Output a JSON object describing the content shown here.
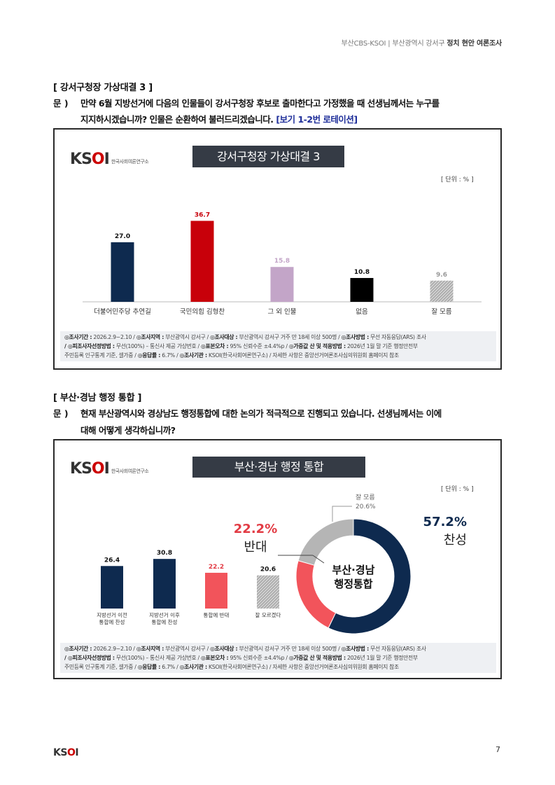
{
  "header": {
    "source": "부산CBS-KSOI",
    "region": "부산광역시 강서구",
    "title": "정치 현안 여론조사"
  },
  "section1": {
    "heading": "[ 강서구청장 가상대결 3 ]",
    "q_prefix": "문 )",
    "q_line1": "만약 6월 지방선거에 다음의 인물들이 강서구청장 후보로 출마한다고 가정했을 때 선생님께서는 누구를",
    "q_line2": "지지하시겠습니까? 인물은 순환하여 불러드리겠습니다.",
    "q_note": "[보기 1-2번 로테이션]"
  },
  "chart1": {
    "logo": "KSOI",
    "logo_sub": "한국사회여론연구소",
    "title": "강서구청장 가상대결 3",
    "unit": "[ 단위 : % ]",
    "chart_data": {
      "type": "bar",
      "categories": [
        "더불어민주당 추연길",
        "국민의힘 김형찬",
        "그 외 인물",
        "없음",
        "잘 모름"
      ],
      "values": [
        27.0,
        36.7,
        15.8,
        10.8,
        9.6
      ],
      "value_labels": [
        "27.0",
        "36.7",
        "15.8",
        "10.8",
        "9.6"
      ],
      "colors": [
        "#0e2a4f",
        "#c8000a",
        "#c3a5c8",
        "#000000",
        "#a0a0a0"
      ],
      "label_colors": [
        "#111111",
        "#c8000a",
        "#c3a5c8",
        "#111111",
        "#999999"
      ],
      "ylim": [
        0,
        40
      ]
    }
  },
  "section2": {
    "heading": "[ 부산·경남 행정 통합 ]",
    "q_prefix": "문 )",
    "q_line1": "현재 부산광역시와 경상남도 행정통합에 대한 논의가 적극적으로 진행되고 있습니다. 선생님께서는 이에",
    "q_line2": "대해 어떻게 생각하십니까?"
  },
  "chart2": {
    "logo": "KSOI",
    "logo_sub": "한국사회여론연구소",
    "title": "부산·경남 행정 통합",
    "unit": "[ 단위 : % ]",
    "chart_data": [
      {
        "type": "bar",
        "categories": [
          "지방선거 이전\n통합에 찬성",
          "지방선거 이후\n통합에 찬성",
          "통합에 반대",
          "잘 모르겠다"
        ],
        "values": [
          26.4,
          30.8,
          22.2,
          20.6
        ],
        "value_labels": [
          "26.4",
          "30.8",
          "22.2",
          "20.6"
        ],
        "colors": [
          "#0e2a4f",
          "#0e2a4f",
          "#f2545b",
          "#a0a0a0"
        ],
        "label_colors": [
          "#111111",
          "#111111",
          "#e23b44",
          "#111111"
        ],
        "ylim": [
          0,
          40
        ]
      },
      {
        "type": "pie",
        "center_label_1": "부산·경남",
        "center_label_2": "행정통합",
        "slices": [
          {
            "name": "찬성",
            "value": 57.2,
            "label": "57.2%",
            "color": "#0e2a4f"
          },
          {
            "name": "반대",
            "value": 22.2,
            "label": "22.2%",
            "color": "#f2545b"
          },
          {
            "name": "잘 모름",
            "value": 20.6,
            "label": "20.6%",
            "color": "#b5b5b5"
          }
        ]
      }
    ]
  },
  "survey_note": {
    "k1": "◎조사기간 :",
    "v1": " 2026.2.9~2.10 / ",
    "k2": "◎조사지역 :",
    "v2": " 부산광역시 강서구 / ",
    "k3": "◎조사대상 :",
    "v3": " 부산광역시 강서구 거주 만 18세 이상 500명 / ",
    "k4": "◎조사방법 :",
    "v4": " 무선 자동응답(ARS) 조사",
    "k5": "/ ◎피조사자선정방법 :",
    "v5": " 무선(100%) – 통신사 제공 가상번호 / ",
    "k6": "◎표본오차 :",
    "v6": " 95% 신뢰수준 ±4.4%p / ",
    "k7": "◎가중값 산 및 적용방법 :",
    "v7": " 2026년 1월 말 기준 행정안전부",
    "v8": "주민등록 인구통계 기준, 셀가중 / ",
    "k9": "◎응답률 :",
    "v9": " 6.7% / ",
    "k10": "◎조사기관 :",
    "v10": " KSOI(한국사회여론연구소) / 자세한 사항은 중앙선거여론조사심의위원회 홈페이지 참조"
  },
  "footer": {
    "logo": "KSOI",
    "page": "7"
  }
}
